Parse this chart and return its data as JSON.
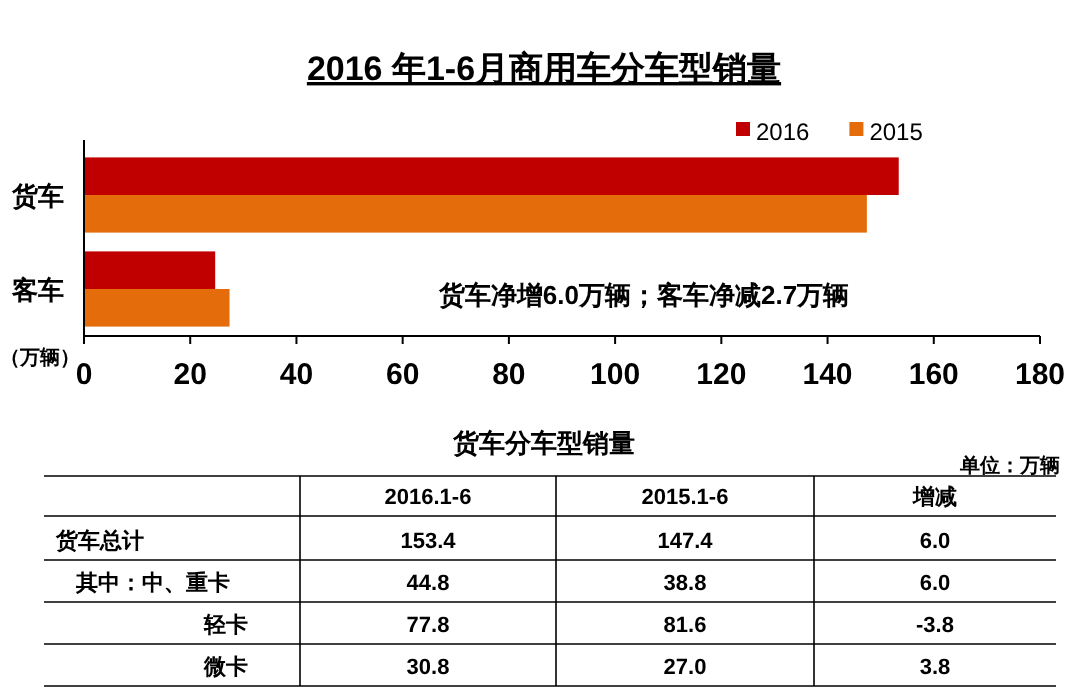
{
  "chart_data": [
    {
      "type": "bar",
      "orientation": "horizontal",
      "title": "2016 年1-6月商用车分车型销量",
      "xlabel": "（万辆）",
      "categories": [
        "货车",
        "客车"
      ],
      "series": [
        {
          "name": "2016",
          "color": "#c00000",
          "values": [
            153.4,
            24.7
          ]
        },
        {
          "name": "2015",
          "color": "#e46c0a",
          "values": [
            147.4,
            27.4
          ]
        }
      ],
      "xlim": [
        0,
        180
      ],
      "xticks": [
        0,
        20,
        40,
        60,
        80,
        100,
        120,
        140,
        160,
        180
      ],
      "legend": "top right",
      "grid": false,
      "annotations": [
        "货车净增6.0万辆；客车净减2.7万辆"
      ]
    },
    {
      "type": "other",
      "title": "货车分车型销量",
      "subtitle": "单位：万辆",
      "categories": [
        "货车总计",
        "其中：中、重卡",
        "轻卡",
        "微卡"
      ],
      "series": [
        {
          "name": "2016.1-6",
          "values": [
            153.4,
            44.8,
            77.8,
            30.8
          ],
          "value_labels": [
            "153.4",
            "44.8",
            "77.8",
            "30.8"
          ]
        },
        {
          "name": "2015.1-6",
          "values": [
            147.4,
            38.8,
            81.6,
            27.0
          ],
          "value_labels": [
            "147.4",
            "38.8",
            "81.6",
            "27.0"
          ]
        },
        {
          "name": "增减",
          "values": [
            6.0,
            6.0,
            -3.8,
            3.8
          ],
          "value_labels": [
            "6.0",
            "6.0",
            "-3.8",
            "3.8"
          ]
        }
      ]
    }
  ]
}
